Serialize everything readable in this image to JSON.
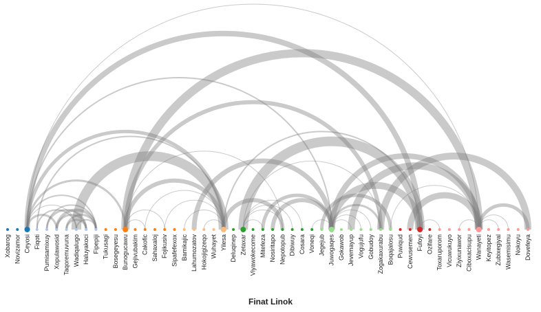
{
  "title": "Finat Linok",
  "colors": {
    "arc": "#7a7a7a",
    "groups": [
      "#1f77b4",
      "#aec7e8",
      "#ff7f0e",
      "#ffbb78",
      "#2ca02c",
      "#98df8a",
      "#d62728",
      "#ff9896"
    ]
  },
  "nodes": [
    {
      "name": "Xobarog",
      "group": 0,
      "size": 1
    },
    {
      "name": "Novizamor",
      "group": 0,
      "size": 1
    },
    {
      "name": "Ceyosi",
      "group": 0,
      "size": 2
    },
    {
      "name": "Fiqoti",
      "group": 1,
      "size": 1
    },
    {
      "name": "Pumisamixuy",
      "group": 1,
      "size": 1
    },
    {
      "name": "Xopulawosid",
      "group": 1,
      "size": 1
    },
    {
      "name": "Taqoremuvuna",
      "group": 1,
      "size": 1
    },
    {
      "name": "Wadiqalugo",
      "group": 1,
      "size": 1
    },
    {
      "name": "Haluyakoci",
      "group": 1,
      "size": 1
    },
    {
      "name": "Fipepiji",
      "group": 1,
      "size": 1
    },
    {
      "name": "Tukusagi",
      "group": 2,
      "size": 1
    },
    {
      "name": "Bosegeyesu",
      "group": 2,
      "size": 1
    },
    {
      "name": "Bunogucawu",
      "group": 2,
      "size": 2
    },
    {
      "name": "Gejivubakim",
      "group": 2,
      "size": 1
    },
    {
      "name": "Cakofic",
      "group": 2,
      "size": 1
    },
    {
      "name": "Sahaxaloj",
      "group": 2,
      "size": 1
    },
    {
      "name": "Fojikusiv",
      "group": 2,
      "size": 1
    },
    {
      "name": "Sipafefexox",
      "group": 2,
      "size": 1
    },
    {
      "name": "Bamikajic",
      "group": 3,
      "size": 1
    },
    {
      "name": "Lahumozatov",
      "group": 3,
      "size": 1
    },
    {
      "name": "Hokojigizeqo",
      "group": 3,
      "size": 1
    },
    {
      "name": "Wuhayet",
      "group": 3,
      "size": 1
    },
    {
      "name": "Yilesa",
      "group": 3,
      "size": 2
    },
    {
      "name": "Deluqinep",
      "group": 4,
      "size": 1
    },
    {
      "name": "Zetaxar",
      "group": 4,
      "size": 2
    },
    {
      "name": "Viyawokecome",
      "group": 4,
      "size": 1
    },
    {
      "name": "Mitefeza",
      "group": 4,
      "size": 1
    },
    {
      "name": "Nosiritapo",
      "group": 4,
      "size": 1
    },
    {
      "name": "Nepotopub",
      "group": 4,
      "size": 1
    },
    {
      "name": "Dibiwuy",
      "group": 4,
      "size": 1
    },
    {
      "name": "Cosara",
      "group": 4,
      "size": 1
    },
    {
      "name": "Voneqi",
      "group": 4,
      "size": 1
    },
    {
      "name": "Jegejub",
      "group": 5,
      "size": 1
    },
    {
      "name": "Juwogaqes",
      "group": 5,
      "size": 2
    },
    {
      "name": "Gokawob",
      "group": 5,
      "size": 1
    },
    {
      "name": "Jevemayup",
      "group": 5,
      "size": 1
    },
    {
      "name": "Vogujufu",
      "group": 5,
      "size": 1
    },
    {
      "name": "Gobudoy",
      "group": 5,
      "size": 1
    },
    {
      "name": "Zogakaxurabu",
      "group": 5,
      "size": 1
    },
    {
      "name": "Boqajalosu",
      "group": 5,
      "size": 1
    },
    {
      "name": "Puwiqud",
      "group": 6,
      "size": 1
    },
    {
      "name": "Cewusemen",
      "group": 6,
      "size": 1
    },
    {
      "name": "Fufoyi",
      "group": 6,
      "size": 2
    },
    {
      "name": "Ozifare",
      "group": 6,
      "size": 1
    },
    {
      "name": "Toxaruporom",
      "group": 7,
      "size": 1
    },
    {
      "name": "Vicuwukuyo",
      "group": 7,
      "size": 1
    },
    {
      "name": "Ziyixunawor",
      "group": 7,
      "size": 1
    },
    {
      "name": "Ciboxacisupu",
      "group": 7,
      "size": 1
    },
    {
      "name": "Wanayeti",
      "group": 7,
      "size": 2
    },
    {
      "name": "Keyitopez",
      "group": 7,
      "size": 1
    },
    {
      "name": "Zubixegiyal",
      "group": 7,
      "size": 1
    },
    {
      "name": "Wasemisimu",
      "group": 7,
      "size": 1
    },
    {
      "name": "Nokoyu",
      "group": 7,
      "size": 1
    },
    {
      "name": "Dovefeya",
      "group": 7,
      "size": 1
    }
  ],
  "links": [
    {
      "source": 2,
      "target": 48,
      "weight": 1
    },
    {
      "source": 2,
      "target": 42,
      "weight": 8
    },
    {
      "source": 2,
      "target": 33,
      "weight": 2
    },
    {
      "source": 2,
      "target": 22,
      "weight": 5
    },
    {
      "source": 2,
      "target": 12,
      "weight": 3
    },
    {
      "source": 2,
      "target": 9,
      "weight": 2
    },
    {
      "source": 2,
      "target": 5,
      "weight": 3
    },
    {
      "source": 3,
      "target": 22,
      "weight": 2
    },
    {
      "source": 3,
      "target": 7,
      "weight": 2
    },
    {
      "source": 4,
      "target": 8,
      "weight": 3
    },
    {
      "source": 4,
      "target": 9,
      "weight": 2
    },
    {
      "source": 5,
      "target": 8,
      "weight": 3
    },
    {
      "source": 5,
      "target": 9,
      "weight": 4
    },
    {
      "source": 6,
      "target": 8,
      "weight": 3
    },
    {
      "source": 6,
      "target": 9,
      "weight": 3
    },
    {
      "source": 7,
      "target": 9,
      "weight": 2
    },
    {
      "source": 2,
      "target": 7,
      "weight": 1
    },
    {
      "source": 7,
      "target": 22,
      "weight": 14
    },
    {
      "source": 12,
      "target": 48,
      "weight": 12
    },
    {
      "source": 12,
      "target": 38,
      "weight": 6
    },
    {
      "source": 12,
      "target": 22,
      "weight": 6
    },
    {
      "source": 12,
      "target": 28,
      "weight": 1
    },
    {
      "source": 12,
      "target": 14,
      "weight": 1
    },
    {
      "source": 12,
      "target": 16,
      "weight": 1
    },
    {
      "source": 14,
      "target": 22,
      "weight": 1
    },
    {
      "source": 16,
      "target": 22,
      "weight": 1
    },
    {
      "source": 18,
      "target": 22,
      "weight": 1
    },
    {
      "source": 20,
      "target": 22,
      "weight": 1
    },
    {
      "source": 19,
      "target": 33,
      "weight": 7
    },
    {
      "source": 22,
      "target": 42,
      "weight": 2
    },
    {
      "source": 22,
      "target": 28,
      "weight": 6
    },
    {
      "source": 24,
      "target": 42,
      "weight": 14
    },
    {
      "source": 24,
      "target": 26,
      "weight": 1
    },
    {
      "source": 24,
      "target": 28,
      "weight": 1
    },
    {
      "source": 24,
      "target": 29,
      "weight": 1
    },
    {
      "source": 24,
      "target": 30,
      "weight": 1
    },
    {
      "source": 26,
      "target": 33,
      "weight": 5
    },
    {
      "source": 27,
      "target": 33,
      "weight": 6
    },
    {
      "source": 24,
      "target": 38,
      "weight": 1
    },
    {
      "source": 33,
      "target": 48,
      "weight": 8
    },
    {
      "source": 33,
      "target": 42,
      "weight": 10
    },
    {
      "source": 33,
      "target": 38,
      "weight": 3
    },
    {
      "source": 33,
      "target": 36,
      "weight": 1
    },
    {
      "source": 33,
      "target": 37,
      "weight": 1
    },
    {
      "source": 33,
      "target": 35,
      "weight": 1
    },
    {
      "source": 33,
      "target": 31,
      "weight": 1
    },
    {
      "source": 32,
      "target": 39,
      "weight": 5
    },
    {
      "source": 35,
      "target": 48,
      "weight": 10
    },
    {
      "source": 38,
      "target": 53,
      "weight": 10
    },
    {
      "source": 39,
      "target": 48,
      "weight": 1
    },
    {
      "source": 41,
      "target": 48,
      "weight": 9
    },
    {
      "source": 42,
      "target": 44,
      "weight": 1
    },
    {
      "source": 46,
      "target": 48,
      "weight": 1
    },
    {
      "source": 48,
      "target": 50,
      "weight": 1
    },
    {
      "source": 48,
      "target": 51,
      "weight": 1
    },
    {
      "source": 48,
      "target": 53,
      "weight": 5
    }
  ]
}
